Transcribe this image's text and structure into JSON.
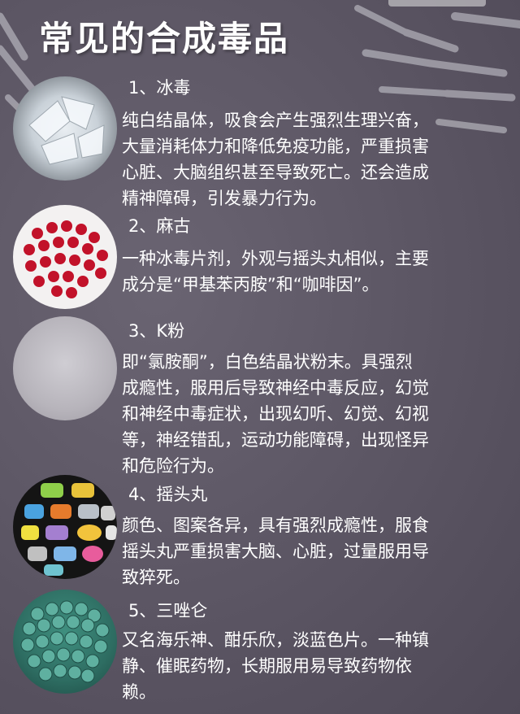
{
  "title": "常见的合成毒品",
  "items": [
    {
      "name": "1、冰毒",
      "lines": [
        "纯白结晶体，吸食会产生强烈生理兴奋，",
        "大量消耗体力和降低免疫功能，严重损害",
        "心脏、大脑组织甚至导致死亡。还会造成",
        "精神障碍，引发暴力行为。"
      ]
    },
    {
      "name": "2、麻古",
      "lines": [
        "一种冰毒片剂，外观与摇头丸相似，主要",
        "成分是“甲基苯丙胺”和“咖啡因”。"
      ]
    },
    {
      "name": "3、K粉",
      "lines": [
        "即“氯胺酮”，白色结晶状粉末。具强烈",
        "成瘾性，服用后导致神经中毒反应，幻觉",
        "和神经中毒症状，出现幻听、幻觉、幻视",
        "等，神经错乱，运动功能障碍，出现怪异",
        "和危险行为。"
      ]
    },
    {
      "name": "4、摇头丸",
      "lines": [
        "颜色、图案各异，具有强烈成瘾性，服食",
        "摇头丸严重损害大脑、心脏，过量服用导",
        "致猝死。"
      ]
    },
    {
      "name": "5、三唑仑",
      "lines": [
        "又名海乐神、酣乐欣，淡蓝色片。一种镇",
        "静、催眠药物，长期服用易导致药物依",
        "赖。"
      ]
    }
  ]
}
